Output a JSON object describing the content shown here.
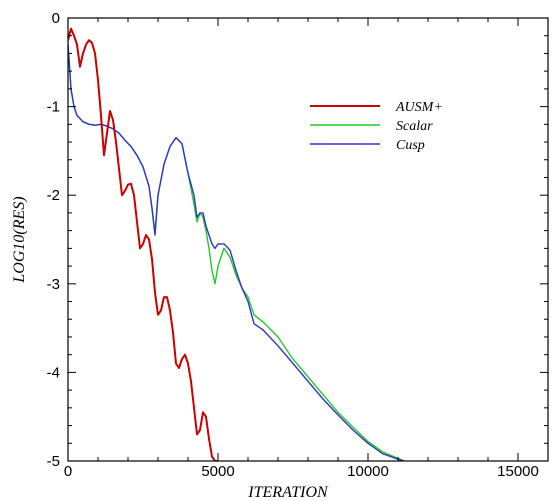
{
  "chart_data": {
    "type": "line",
    "title": "",
    "xlabel": "ITERATION",
    "ylabel": "LOG10(RES)",
    "xlim": [
      0,
      16000
    ],
    "ylim": [
      -5,
      0
    ],
    "x_ticks": [
      0,
      5000,
      10000,
      15000
    ],
    "y_ticks": [
      0,
      -1,
      -2,
      -3,
      -4,
      -5
    ],
    "x_tick_labels": [
      "0",
      "5000",
      "10000",
      "15000"
    ],
    "y_tick_labels": [
      "0",
      "-1",
      "-2",
      "-3",
      "-4",
      "-5"
    ],
    "grid": false,
    "legend_position": "top-right",
    "series": [
      {
        "name": "AUSM+",
        "color": "#cc0000",
        "x": [
          0,
          100,
          200,
          300,
          400,
          500,
          600,
          700,
          800,
          900,
          1000,
          1100,
          1200,
          1300,
          1400,
          1500,
          1600,
          1700,
          1800,
          1900,
          2000,
          2100,
          2200,
          2300,
          2400,
          2500,
          2600,
          2700,
          2800,
          2900,
          3000,
          3100,
          3200,
          3300,
          3400,
          3500,
          3600,
          3700,
          3800,
          3900,
          4000,
          4100,
          4200,
          4300,
          4400,
          4500,
          4600,
          4700,
          4800,
          4900,
          5000
        ],
        "y": [
          -0.25,
          -0.12,
          -0.2,
          -0.3,
          -0.55,
          -0.4,
          -0.3,
          -0.25,
          -0.28,
          -0.4,
          -0.7,
          -1.1,
          -1.55,
          -1.3,
          -1.05,
          -1.15,
          -1.4,
          -1.7,
          -2.0,
          -1.95,
          -1.88,
          -1.87,
          -2.0,
          -2.3,
          -2.6,
          -2.55,
          -2.45,
          -2.5,
          -2.72,
          -3.1,
          -3.35,
          -3.3,
          -3.15,
          -3.15,
          -3.3,
          -3.55,
          -3.9,
          -3.95,
          -3.85,
          -3.8,
          -3.9,
          -4.1,
          -4.4,
          -4.7,
          -4.65,
          -4.45,
          -4.5,
          -4.75,
          -4.95,
          -5.0,
          -5.0
        ]
      },
      {
        "name": "Scalar",
        "color": "#22cc22",
        "x": [
          0,
          100,
          200,
          300,
          500,
          700,
          900,
          1100,
          1300,
          1500,
          1700,
          1900,
          2100,
          2300,
          2500,
          2700,
          2800,
          2900,
          3000,
          3200,
          3400,
          3600,
          3800,
          4000,
          4200,
          4300,
          4400,
          4500,
          4600,
          4700,
          4800,
          4900,
          5000,
          5200,
          5400,
          5600,
          5800,
          6000,
          6200,
          6500,
          7000,
          7500,
          8000,
          8500,
          9000,
          9500,
          10000,
          10500,
          11000,
          11200
        ],
        "y": [
          -0.3,
          -0.8,
          -1.0,
          -1.1,
          -1.17,
          -1.2,
          -1.21,
          -1.2,
          -1.22,
          -1.25,
          -1.3,
          -1.38,
          -1.45,
          -1.55,
          -1.68,
          -1.9,
          -2.15,
          -2.42,
          -2.0,
          -1.65,
          -1.45,
          -1.35,
          -1.42,
          -1.75,
          -2.1,
          -2.3,
          -2.2,
          -2.25,
          -2.4,
          -2.6,
          -2.85,
          -3.0,
          -2.8,
          -2.6,
          -2.7,
          -2.9,
          -3.05,
          -3.15,
          -3.35,
          -3.43,
          -3.6,
          -3.85,
          -4.05,
          -4.25,
          -4.45,
          -4.62,
          -4.78,
          -4.9,
          -4.97,
          -5.0
        ]
      },
      {
        "name": "Cusp",
        "color": "#3333cc",
        "x": [
          0,
          100,
          200,
          300,
          500,
          700,
          900,
          1100,
          1300,
          1500,
          1700,
          1900,
          2100,
          2300,
          2500,
          2700,
          2800,
          2900,
          3000,
          3200,
          3400,
          3600,
          3800,
          4000,
          4200,
          4300,
          4400,
          4500,
          4600,
          4700,
          4800,
          4900,
          5000,
          5200,
          5400,
          5600,
          5800,
          6000,
          6200,
          6500,
          7000,
          7500,
          8000,
          8500,
          9000,
          9500,
          10000,
          10500,
          11000,
          11200
        ],
        "y": [
          -0.3,
          -0.8,
          -1.0,
          -1.1,
          -1.17,
          -1.2,
          -1.21,
          -1.2,
          -1.22,
          -1.25,
          -1.3,
          -1.38,
          -1.45,
          -1.55,
          -1.68,
          -1.9,
          -2.15,
          -2.45,
          -2.0,
          -1.65,
          -1.45,
          -1.35,
          -1.42,
          -1.75,
          -2.0,
          -2.25,
          -2.2,
          -2.2,
          -2.35,
          -2.45,
          -2.55,
          -2.6,
          -2.55,
          -2.55,
          -2.62,
          -2.85,
          -3.05,
          -3.2,
          -3.45,
          -3.52,
          -3.7,
          -3.9,
          -4.1,
          -4.3,
          -4.48,
          -4.65,
          -4.8,
          -4.92,
          -4.98,
          -5.0
        ]
      }
    ]
  }
}
